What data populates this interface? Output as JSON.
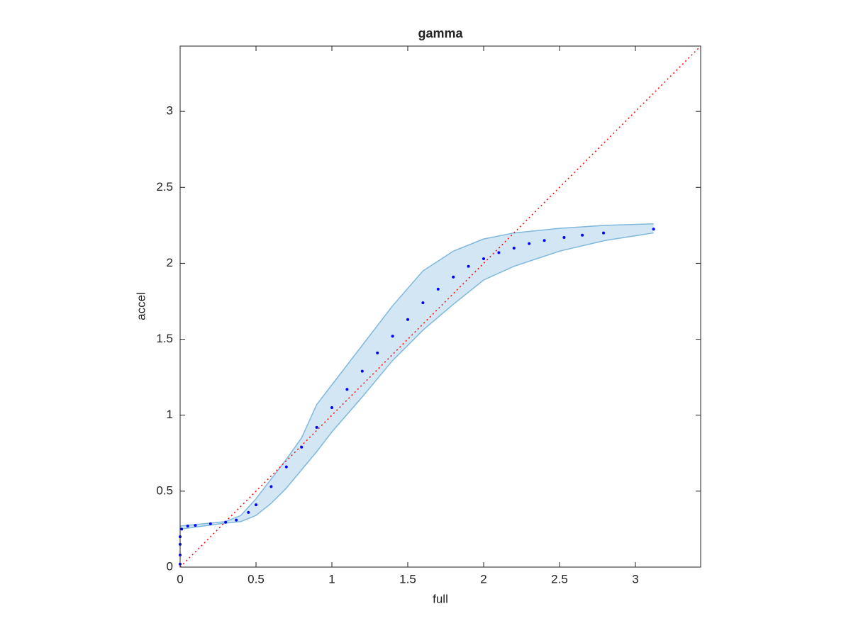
{
  "chart_data": {
    "type": "scatter",
    "title": "gamma",
    "x_label": "full",
    "y_label": "accel",
    "x": [
      0,
      0,
      0,
      0,
      0.01,
      0.05,
      0.1,
      0.2,
      0.3,
      0.37,
      0.45,
      0.5,
      0.6,
      0.7,
      0.8,
      0.9,
      1.0,
      1.1,
      1.2,
      1.3,
      1.4,
      1.5,
      1.6,
      1.7,
      1.8,
      1.9,
      2.0,
      2.1,
      2.2,
      2.3,
      2.4,
      2.53,
      2.65,
      2.79,
      3.12
    ],
    "values": [
      0.02,
      0.08,
      0.15,
      0.2,
      0.25,
      0.27,
      0.275,
      0.285,
      0.295,
      0.31,
      0.36,
      0.41,
      0.53,
      0.66,
      0.79,
      0.92,
      1.05,
      1.17,
      1.29,
      1.41,
      1.52,
      1.63,
      1.74,
      1.83,
      1.91,
      1.98,
      2.03,
      2.07,
      2.1,
      2.13,
      2.15,
      2.17,
      2.185,
      2.2,
      2.225
    ],
    "color": "#0000ff",
    "band": {
      "x": [
        0,
        0.3,
        0.4,
        0.5,
        0.6,
        0.7,
        0.8,
        0.9,
        1.0,
        1.2,
        1.4,
        1.6,
        1.8,
        2.0,
        2.2,
        2.5,
        2.8,
        3.12
      ],
      "upper": [
        0.27,
        0.3,
        0.34,
        0.45,
        0.58,
        0.71,
        0.85,
        1.07,
        1.2,
        1.46,
        1.72,
        1.95,
        2.08,
        2.16,
        2.2,
        2.23,
        2.25,
        2.26
      ],
      "lower": [
        0.25,
        0.29,
        0.3,
        0.34,
        0.42,
        0.52,
        0.64,
        0.76,
        0.89,
        1.12,
        1.36,
        1.56,
        1.73,
        1.89,
        1.98,
        2.08,
        2.15,
        2.2
      ],
      "color": "#7fb8dd"
    },
    "reference_line": {
      "x": [
        0,
        3.43
      ],
      "y": [
        0,
        3.43
      ],
      "color": "#ff0000"
    },
    "xlim": [
      0,
      3.43
    ],
    "ylim": [
      0,
      3.43
    ],
    "xticks": [
      0,
      0.5,
      1,
      1.5,
      2,
      2.5,
      3
    ],
    "yticks": [
      0,
      0.5,
      1,
      1.5,
      2,
      2.5,
      3
    ]
  }
}
